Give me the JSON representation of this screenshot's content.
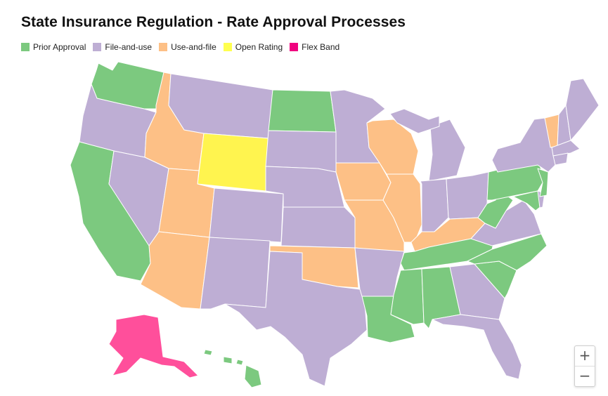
{
  "title": "State Insurance Regulation - Rate Approval Processes",
  "legend": [
    {
      "label": "Prior Approval",
      "color": "#7cc97f"
    },
    {
      "label": "File-and-use",
      "color": "#beaed4"
    },
    {
      "label": "Use-and-file",
      "color": "#fdc086"
    },
    {
      "label": "Open Rating",
      "color": "#ffff4f"
    },
    {
      "label": "Flex Band",
      "color": "#f0027f"
    }
  ],
  "colors": {
    "prior": "#7cc97f",
    "file": "#beaed4",
    "use": "#fdc086",
    "open": "#fff44f",
    "flex": "#ff4f9b"
  },
  "zoom": {
    "in": "+",
    "out": "−"
  }
}
